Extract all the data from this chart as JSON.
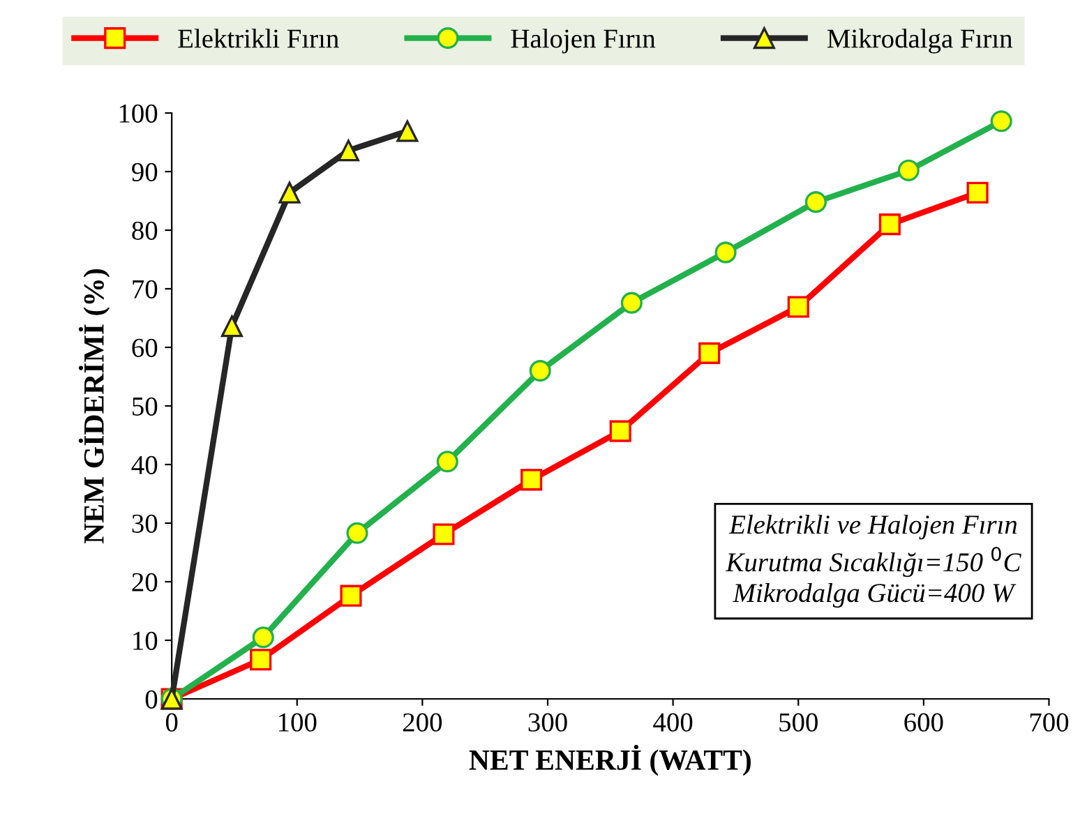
{
  "chart_data": {
    "type": "line",
    "xlabel": "NET ENERJİ (WATT)",
    "ylabel": "NEM GİDERİMİ (%)",
    "xlim": [
      0,
      700
    ],
    "xticks": [
      0,
      100,
      200,
      300,
      400,
      500,
      600,
      700
    ],
    "ylim": [
      0,
      100
    ],
    "yticks": [
      0,
      10,
      20,
      30,
      40,
      50,
      60,
      70,
      80,
      90,
      100
    ],
    "grid": false,
    "legend": "top",
    "line_style": "solid",
    "series": [
      {
        "name": "Elektrikli Fırın",
        "color": "#ff0000",
        "marker": "square",
        "x": [
          0,
          71,
          143,
          217,
          287,
          358,
          429,
          500,
          573,
          643
        ],
        "values": [
          0,
          6.7,
          17.6,
          28.1,
          37.4,
          45.7,
          59,
          66.9,
          81,
          86.4
        ]
      },
      {
        "name": "Halojen Fırın",
        "color": "#22b14c",
        "marker": "circle",
        "x": [
          0,
          73,
          148,
          220,
          294,
          367,
          442,
          514,
          588,
          662
        ],
        "values": [
          0,
          10.5,
          28.3,
          40.5,
          56,
          67.6,
          76.2,
          84.8,
          90.2,
          98.6
        ]
      },
      {
        "name": "Mikrodalga Fırın",
        "color": "#262626",
        "marker": "triangle",
        "x": [
          0,
          48,
          94,
          141,
          188
        ],
        "values": [
          0,
          63.6,
          86.4,
          93.6,
          96.9
        ]
      }
    ],
    "annotations": [
      "Elektrikli ve Halojen Fırın\nKurutma Sıcaklığı=150 $^{0}$C\nMikrodalga Gücü=400 W"
    ]
  }
}
